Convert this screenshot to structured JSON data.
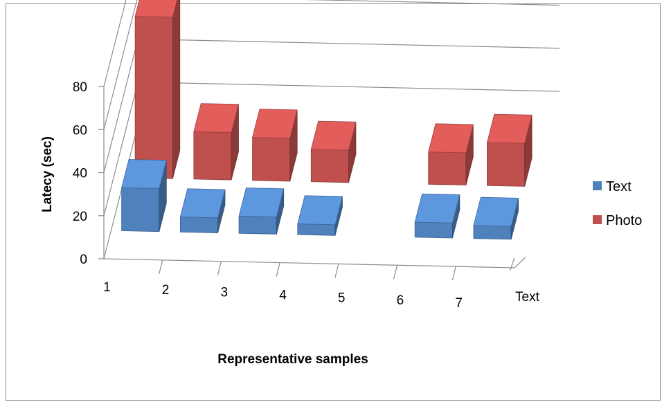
{
  "chart_data": {
    "type": "bar",
    "subtype": "3d-clustered-column",
    "categories": [
      "1",
      "2",
      "3",
      "4",
      "5",
      "6",
      "7"
    ],
    "series": [
      {
        "name": "Text",
        "values": [
          20,
          7,
          8,
          5,
          null,
          7,
          6
        ],
        "color": "#4f81bd"
      },
      {
        "name": "Photo",
        "values": [
          75,
          22,
          20,
          15,
          null,
          15,
          20
        ],
        "color": "#c0504d"
      }
    ],
    "title": "",
    "xlabel": "Representative samples",
    "ylabel": "Latecy (sec)",
    "depth_label": "Text",
    "ylim": [
      0,
      80
    ],
    "yticks": [
      0,
      20,
      40,
      60,
      80
    ],
    "grid": true,
    "legend": "right"
  }
}
